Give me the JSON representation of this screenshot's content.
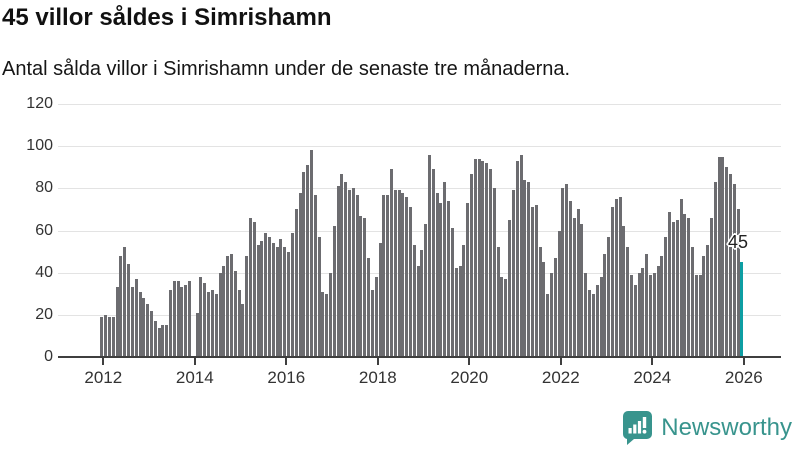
{
  "chart_data": {
    "type": "bar",
    "title": "45 villor såldes i Simrishamn",
    "subtitle": "Antal sålda villor i Simrishamn under de senaste tre månaderna.",
    "frequency": "monthly",
    "x_start": "2012-01",
    "x_end": "2026-01",
    "ylim": [
      0,
      120
    ],
    "y_ticks": [
      0,
      20,
      40,
      60,
      80,
      100,
      120
    ],
    "x_tick_labels": [
      "2012",
      "2014",
      "2016",
      "2018",
      "2020",
      "2022",
      "2024",
      "2026"
    ],
    "grid": true,
    "legend": "none",
    "bar_color": "#6c6c70",
    "highlight_color": "#0d9ea3",
    "annotation": {
      "text": "45",
      "target": "last-bar"
    },
    "values": [
      19,
      20,
      19,
      19,
      33,
      48,
      52,
      44,
      33,
      37,
      31,
      28,
      25,
      22,
      17,
      14,
      15,
      15,
      32,
      36,
      36,
      33,
      34,
      36,
      0,
      21,
      38,
      35,
      31,
      32,
      30,
      40,
      43,
      48,
      49,
      41,
      32,
      25,
      48,
      66,
      64,
      53,
      55,
      59,
      57,
      54,
      52,
      56,
      52,
      50,
      59,
      70,
      78,
      88,
      91,
      98,
      77,
      57,
      31,
      30,
      40,
      62,
      81,
      87,
      83,
      79,
      80,
      77,
      67,
      66,
      47,
      32,
      38,
      54,
      77,
      77,
      89,
      79,
      79,
      78,
      76,
      71,
      53,
      43,
      51,
      63,
      96,
      89,
      78,
      73,
      83,
      74,
      61,
      42,
      43,
      53,
      73,
      87,
      94,
      94,
      93,
      92,
      89,
      80,
      52,
      38,
      37,
      65,
      79,
      93,
      96,
      84,
      83,
      71,
      72,
      52,
      45,
      30,
      40,
      47,
      60,
      80,
      82,
      74,
      66,
      70,
      63,
      40,
      32,
      30,
      34,
      38,
      49,
      57,
      71,
      75,
      76,
      62,
      52,
      39,
      34,
      40,
      42,
      49,
      39,
      40,
      43,
      48,
      57,
      69,
      64,
      65,
      75,
      68,
      66,
      52,
      39,
      39,
      48,
      53,
      66,
      83,
      95,
      95,
      90,
      87,
      82,
      70,
      45
    ],
    "highlight_last_value": 45
  },
  "footer": {
    "brand_name": "Newsworthy",
    "brand_color": "#38948d",
    "logo_icon": "bar-chart-speech-bubble"
  }
}
